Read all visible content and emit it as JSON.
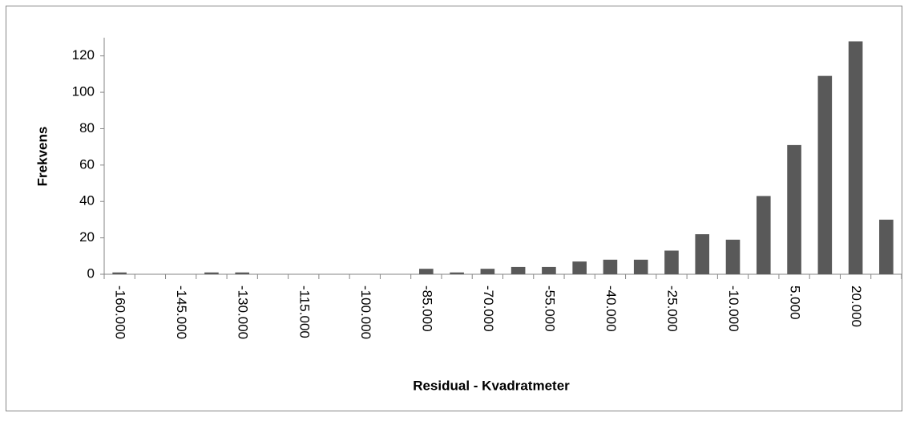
{
  "chart_data": {
    "type": "bar",
    "x_label": "Residual - Kvadratmeter",
    "y_label": "Frekvens",
    "categories": [
      "-160.000",
      null,
      "-145.000",
      null,
      "-130.000",
      null,
      "-115.000",
      null,
      "-100.000",
      null,
      "-85.000",
      null,
      "-70.000",
      null,
      "-55.000",
      null,
      "-40.000",
      null,
      "-25.000",
      null,
      "-10.000",
      null,
      "5.000",
      null,
      "20.000",
      null
    ],
    "values": [
      1,
      0,
      0,
      1,
      1,
      0,
      0,
      0,
      0,
      0,
      3,
      1,
      3,
      4,
      4,
      7,
      8,
      8,
      13,
      22,
      19,
      43,
      71,
      109,
      128,
      30
    ],
    "color": "#595959",
    "ylim": [
      0,
      130
    ],
    "yticks": [
      0,
      20,
      40,
      60,
      80,
      100,
      120
    ],
    "grid": false
  }
}
